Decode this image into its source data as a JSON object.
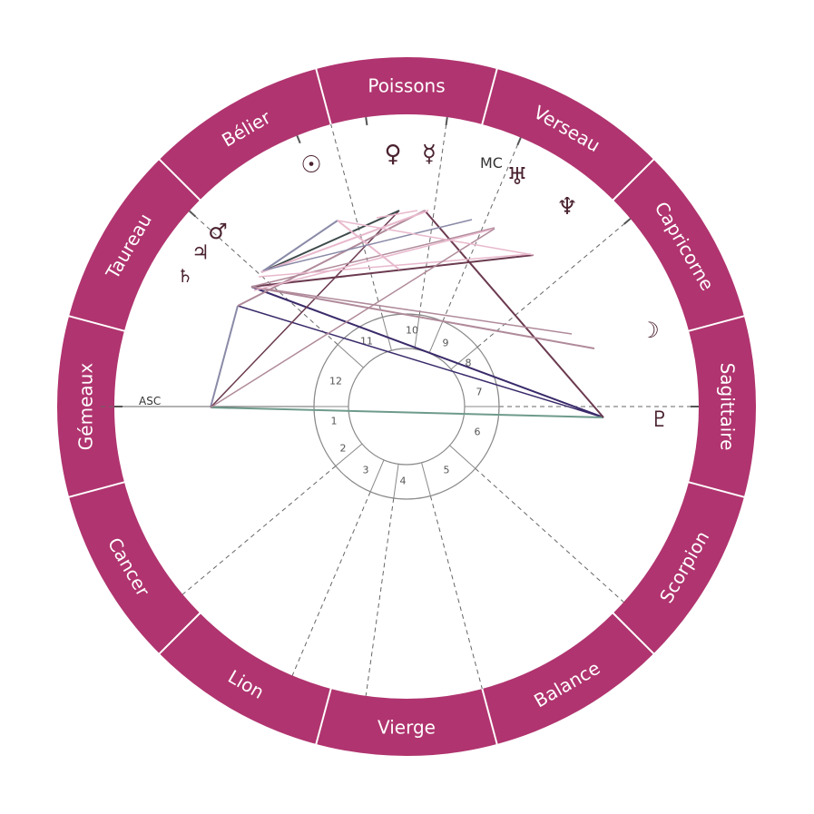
{
  "colors": {
    "ring": "#b0346f",
    "ring_divider": "#ffffff",
    "cusp": "#666666",
    "inner_circle": "#888888",
    "glyph": "#4a2230"
  },
  "signs": [
    {
      "label": "Poissons"
    },
    {
      "label": "Verseau"
    },
    {
      "label": "Capricorne"
    },
    {
      "label": "Sagittaire"
    },
    {
      "label": "Scorpion"
    },
    {
      "label": "Balance"
    },
    {
      "label": "Vierge"
    },
    {
      "label": "Lion"
    },
    {
      "label": "Cancer"
    },
    {
      "label": "Gémeaux"
    },
    {
      "label": "Taureau"
    },
    {
      "label": "Bélier"
    }
  ],
  "houses": [
    "1",
    "2",
    "3",
    "4",
    "5",
    "6",
    "7",
    "8",
    "9",
    "10",
    "11",
    "12"
  ],
  "axes": {
    "asc": "ASC",
    "mc": "MC"
  },
  "planets": [
    {
      "id": "sun",
      "name": "Soleil",
      "glyph": "☉"
    },
    {
      "id": "venus",
      "name": "Vénus",
      "glyph": "♀"
    },
    {
      "id": "mercury",
      "name": "Mercure",
      "glyph": "☿"
    },
    {
      "id": "uranus",
      "name": "Uranus",
      "glyph": "♅"
    },
    {
      "id": "neptune",
      "name": "Neptune",
      "glyph": "♆"
    },
    {
      "id": "moon",
      "name": "Lune",
      "glyph": "☽"
    },
    {
      "id": "pluto",
      "name": "Pluton",
      "glyph": "♇"
    },
    {
      "id": "mars",
      "name": "Mars",
      "glyph": "♂"
    },
    {
      "id": "jupiter",
      "name": "Jupiter",
      "glyph": "♃"
    },
    {
      "id": "saturn",
      "name": "Saturne",
      "glyph": "♄"
    }
  ],
  "aspect_colors": [
    "#3a2a6a",
    "#6b3a4f",
    "#b08a9a",
    "#e8b8cc",
    "#8a8aa8",
    "#6e9a8c",
    "#3e4a4a"
  ]
}
